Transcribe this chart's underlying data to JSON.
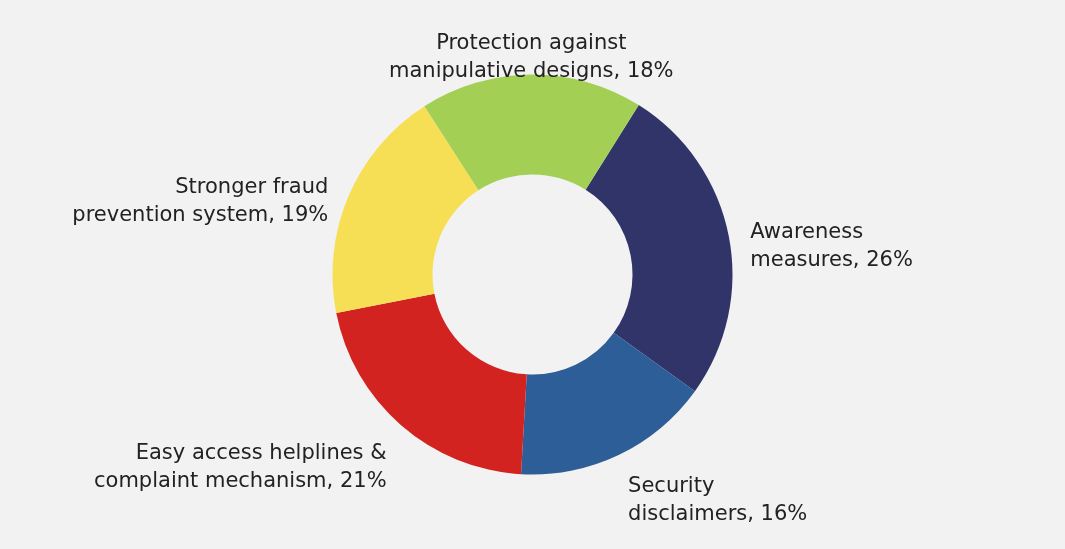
{
  "chart_data": {
    "type": "donut",
    "categories": [
      "Awareness measures",
      "Security disclaimers",
      "Easy access helplines & complaint mechanism",
      "Stronger fraud prevention system",
      "Protection against manipulative designs"
    ],
    "values": [
      26,
      16,
      21,
      19,
      18
    ],
    "value_labels": [
      "26%",
      "16%",
      "21%",
      "19%",
      "18%"
    ],
    "colors": [
      "#313468",
      "#2e5e97",
      "#d22320",
      "#f7df55",
      "#a3cf55"
    ]
  }
}
